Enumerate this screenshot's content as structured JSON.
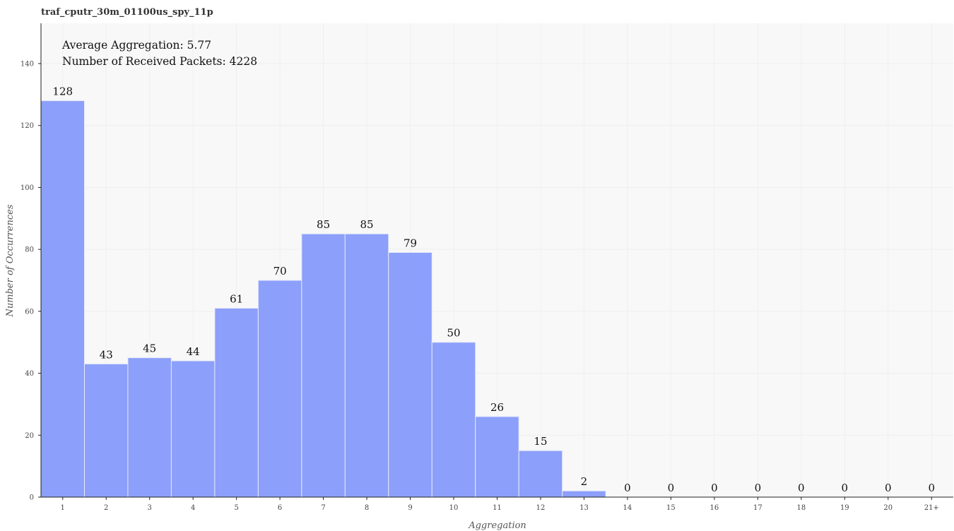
{
  "chart_data": {
    "type": "bar",
    "title": "traf_cputr_30m_01100us_spy_11p",
    "xlabel": "Aggregation",
    "ylabel": "Number of Occurrences",
    "categories": [
      "1",
      "2",
      "3",
      "4",
      "5",
      "6",
      "7",
      "8",
      "9",
      "10",
      "11",
      "12",
      "13",
      "14",
      "15",
      "16",
      "17",
      "18",
      "19",
      "20",
      "21+"
    ],
    "values": [
      128,
      43,
      45,
      44,
      61,
      70,
      85,
      85,
      79,
      50,
      26,
      15,
      2,
      0,
      0,
      0,
      0,
      0,
      0,
      0,
      0
    ],
    "ylim": [
      0,
      153
    ],
    "yticks": [
      0,
      20,
      40,
      60,
      80,
      100,
      120,
      140
    ],
    "annotations": [
      "Average Aggregation: 5.77",
      "Number of Received Packets: 4228"
    ],
    "grid": true,
    "bar_color": "#8c9ffa",
    "background": "#f8f8f8"
  }
}
